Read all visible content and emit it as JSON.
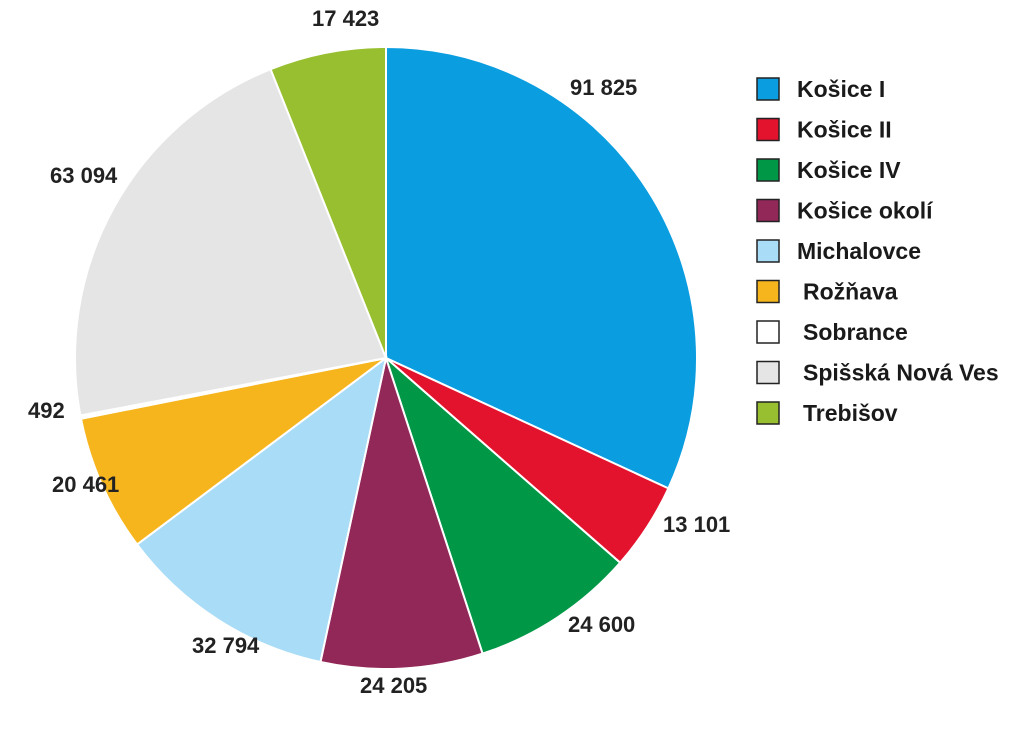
{
  "chart_data": {
    "type": "pie",
    "title": "",
    "start_angle_deg": 0,
    "direction": "clockwise",
    "slices": [
      {
        "label": "Košice I",
        "value": 91825,
        "value_label": "91 825",
        "color": "#0a9de0"
      },
      {
        "label": "Košice II",
        "value": 13101,
        "value_label": "13 101",
        "color": "#e3122d"
      },
      {
        "label": "Košice IV",
        "value": 24600,
        "value_label": "24 600",
        "color": "#009846"
      },
      {
        "label": "Košice okolí",
        "value": 24205,
        "value_label": "24 205",
        "color": "#922858"
      },
      {
        "label": "Michalovce",
        "value": 32794,
        "value_label": "32 794",
        "color": "#a9dcf6"
      },
      {
        "label": "Rožňava",
        "value": 20461,
        "value_label": "20 461",
        "color": "#f6b51d"
      },
      {
        "label": "Sobrance",
        "value": 492,
        "value_label": "492",
        "color": "#ffffff"
      },
      {
        "label": "Spišská Nová Ves",
        "value": 63094,
        "value_label": "63 094",
        "color": "#e5e5e5"
      },
      {
        "label": "Trebišov",
        "value": 17423,
        "value_label": "17 423",
        "color": "#97bf2f"
      }
    ],
    "legend": {
      "position": "right"
    }
  }
}
